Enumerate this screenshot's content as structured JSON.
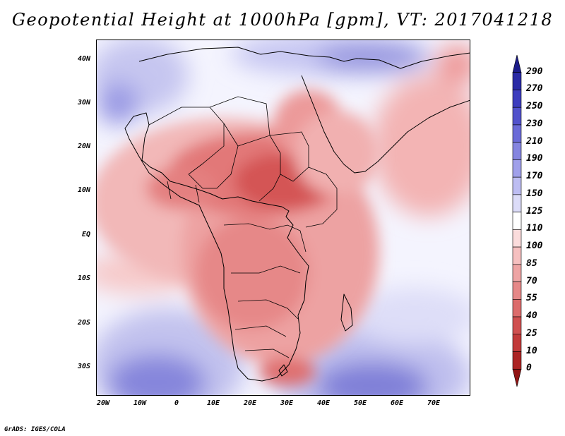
{
  "title": "Geopotential Height at 1000hPa [gpm], VT: 2017041218",
  "credit": "GrADS: IGES/COLA",
  "map": {
    "lat_range": [
      -36,
      45
    ],
    "lon_range": [
      -22,
      79
    ],
    "lat_labels": [
      "40N",
      "30N",
      "20N",
      "10N",
      "EQ",
      "10S",
      "20S",
      "30S"
    ],
    "lat_values": [
      40,
      30,
      20,
      10,
      0,
      -10,
      -20,
      -30
    ],
    "lon_labels": [
      "20W",
      "10W",
      "0",
      "10E",
      "20E",
      "30E",
      "40E",
      "50E",
      "60E",
      "70E"
    ],
    "lon_values": [
      -20,
      -10,
      0,
      10,
      20,
      30,
      40,
      50,
      60,
      70
    ]
  },
  "colorbar": {
    "levels": [
      "290",
      "270",
      "250",
      "230",
      "210",
      "190",
      "170",
      "150",
      "125",
      "110",
      "100",
      "85",
      "70",
      "55",
      "40",
      "25",
      "10",
      "0"
    ],
    "colors": [
      "#1c1c8a",
      "#2a2aa6",
      "#3d3dbe",
      "#5252cc",
      "#6b6bd8",
      "#8585e0",
      "#a0a0ea",
      "#bdbdf2",
      "#dcdcf8",
      "#ffffff",
      "#fbdcdc",
      "#f6c0c0",
      "#eea4a4",
      "#e68888",
      "#dc6c6c",
      "#d05050",
      "#c23a3a",
      "#ac2424",
      "#921414"
    ]
  }
}
